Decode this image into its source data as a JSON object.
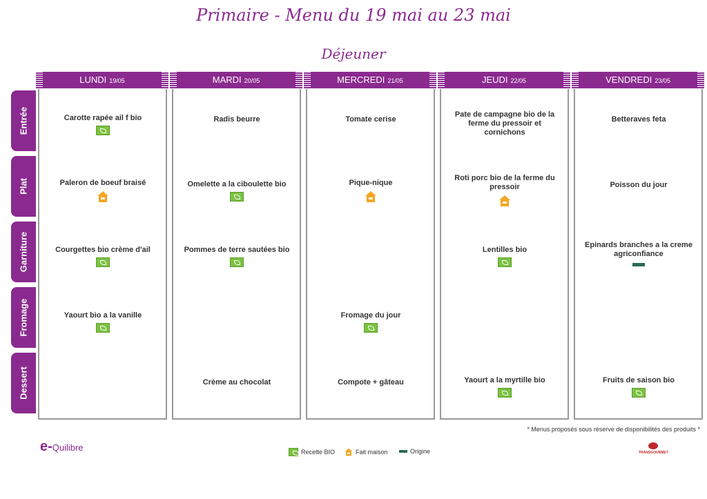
{
  "header": {
    "title": "Primaire - Menu du 19 mai au 23 mai",
    "meal": "Déjeuner"
  },
  "rows": [
    "Entrée",
    "Plat",
    "Garniture",
    "Fromage",
    "Dessert"
  ],
  "days": [
    {
      "name": "LUNDI",
      "date": "19/05"
    },
    {
      "name": "MARDI",
      "date": "20/05"
    },
    {
      "name": "MERCREDI",
      "date": "21/05"
    },
    {
      "name": "JEUDI",
      "date": "22/05"
    },
    {
      "name": "VENDREDI",
      "date": "23/05"
    }
  ],
  "menu": {
    "lundi": {
      "entree": {
        "text": "Carotte rapée ail f bio",
        "icon": "bio-leaf-icon"
      },
      "plat": {
        "text": "Paleron de boeuf braisé",
        "icon": "homemade-house-icon"
      },
      "garniture": {
        "text": "Courgettes bio crème d'ail",
        "icon": "bio-leaf-icon"
      },
      "fromage": {
        "text": "Yaourt bio a la vanille",
        "icon": "bio-leaf-icon"
      },
      "dessert": {
        "text": ""
      }
    },
    "mardi": {
      "entree": {
        "text": "Radis beurre"
      },
      "plat": {
        "text": "Omelette a la ciboulette bio",
        "icon": "bio-leaf-icon"
      },
      "garniture": {
        "text": "Pommes de terre sautées bio",
        "icon": "bio-leaf-icon"
      },
      "fromage": {
        "text": ""
      },
      "dessert": {
        "text": "Crème au chocolat"
      }
    },
    "mercredi": {
      "entree": {
        "text": "Tomate cerise"
      },
      "plat": {
        "text": "Pique-nique",
        "icon": "homemade-house-icon"
      },
      "garniture": {
        "text": ""
      },
      "fromage": {
        "text": "Fromage du jour",
        "icon": "bio-leaf-icon"
      },
      "dessert": {
        "text": "Compote + gâteau"
      }
    },
    "jeudi": {
      "entree": {
        "text": "Pate de campagne bio de la ferme du pressoir et cornichons"
      },
      "plat": {
        "text": "Roti porc bio de la ferme du pressoir",
        "icon": "homemade-house-icon"
      },
      "garniture": {
        "text": "Lentilles bio",
        "icon": "bio-leaf-icon"
      },
      "fromage": {
        "text": ""
      },
      "dessert": {
        "text": "Yaourt a la myrtille bio",
        "icon": "bio-leaf-icon"
      }
    },
    "vendredi": {
      "entree": {
        "text": "Betteraves feta"
      },
      "plat": {
        "text": "Poisson du jour"
      },
      "garniture": {
        "text": "Epinards branches a la creme agriconfiance",
        "icon": "origin-flag-icon"
      },
      "fromage": {
        "text": ""
      },
      "dessert": {
        "text": "Fruits de saison bio",
        "icon": "bio-leaf-icon"
      }
    }
  },
  "footer": {
    "note": "* Menus proposés sous réserve de disponibilités des produits *",
    "legend_bio": "Recette BIO",
    "legend_homemade": "Fait maison",
    "legend_origin": "Origine",
    "logo_left": "Quilibre",
    "logo_left_prefix": "e-",
    "logo_right": "TRANSGOURMET"
  },
  "colors": {
    "brand_purple": "#8a2a8f",
    "bio_green": "#7cc242",
    "homemade_orange": "#f5a623",
    "origin_green": "#2a6b55",
    "border_gray": "#999999"
  }
}
